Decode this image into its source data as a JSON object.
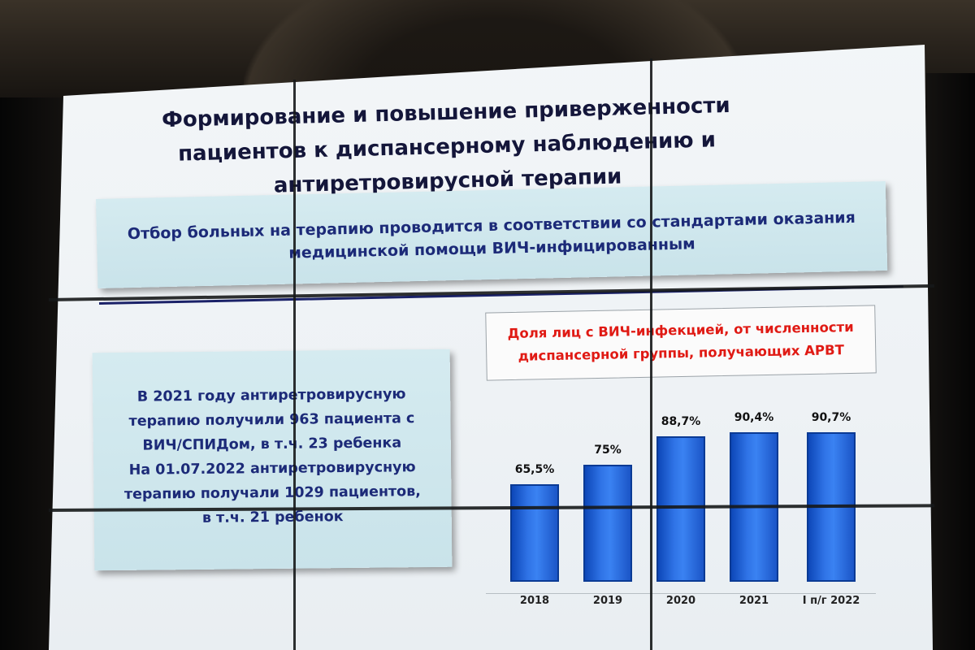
{
  "slide": {
    "title_lines": [
      "Формирование и повышение приверженности",
      "пациентов к диспансерному наблюдению и",
      "антиретровирусной терапии"
    ],
    "standard_box_lines": [
      "Отбор больных на терапию проводится в соответствии со стандартами оказания",
      "медицинской помощи ВИЧ-инфицированным"
    ],
    "info_box_lines": [
      "В 2021 году антиретровирусную",
      "терапию получили 963 пациента с",
      "ВИЧ/СПИДом, в т.ч. 23 ребенка",
      "На 01.07.2022 антиретровирусную",
      "терапию получали 1029 пациентов,",
      "в т.ч. 21 ребенок"
    ]
  },
  "chart_data": {
    "type": "bar",
    "title_lines": [
      "Доля лиц с ВИЧ-инфекцией, от численности",
      "диспансерной группы, получающих АРВТ"
    ],
    "categories": [
      "2018",
      "2019",
      "2020",
      "2021",
      "I п/г 2022"
    ],
    "values": [
      65.5,
      75,
      88.7,
      90.4,
      90.7
    ],
    "data_labels": [
      "65,5%",
      "75%",
      "88,7%",
      "90,4%",
      "90,7%"
    ],
    "unit": "%",
    "ylim": [
      0,
      100
    ],
    "bar_color": "#2f73e6",
    "title_color": "#e01a14"
  }
}
